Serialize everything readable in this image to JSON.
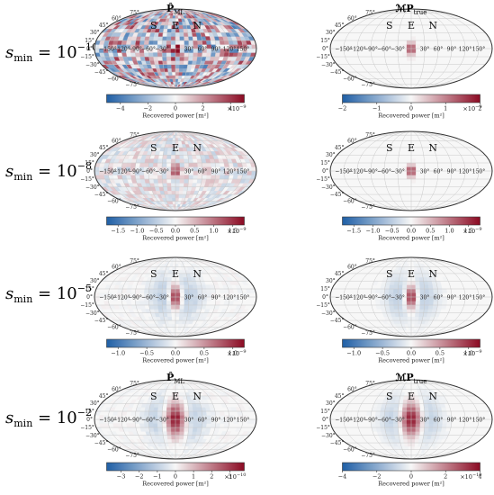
{
  "colors": {
    "neg": "#1f5fa6",
    "zero": "#f7f7f7",
    "pos": "#8b0a22",
    "grid": "#c8c8c8",
    "outline": "#333333"
  },
  "grid_labels": {
    "longitudes": [
      "−150°",
      "−120°",
      "−90°",
      "−60°",
      "−30°",
      "30°",
      "60°",
      "90°",
      "120°",
      "150°"
    ],
    "latitudes": [
      "75°",
      "60°",
      "45°",
      "30°",
      "15°",
      "0°",
      "−15°",
      "−30°",
      "−45°",
      "−60°",
      "−75°"
    ],
    "regions": [
      "S",
      "E",
      "N"
    ]
  },
  "rows": [
    {
      "label_base": "s",
      "label_sub": "min",
      "label_eq": " = 10",
      "label_exp": "−10",
      "panels": [
        {
          "title_base": "P̂",
          "title_sub": "ML",
          "colorbar_label": "Recovered power [m²]",
          "ticks": [
            "−4",
            "−2",
            "0",
            "2",
            "4"
          ],
          "tick_values": [
            -4,
            -2,
            0,
            2,
            4
          ],
          "range": [
            -5,
            5
          ],
          "multiplier": "×10",
          "multiplier_exp": "−9"
        },
        {
          "title_base": "ℳP",
          "title_sub": "true",
          "colorbar_label": "Recovered power [m²]",
          "ticks": [
            "−2",
            "−1",
            "0",
            "1",
            "2"
          ],
          "tick_values": [
            -2,
            -1,
            0,
            1,
            2
          ],
          "range": [
            -2,
            2
          ],
          "multiplier": "×10",
          "multiplier_exp": "−9"
        }
      ]
    },
    {
      "label_base": "s",
      "label_sub": "min",
      "label_eq": " = 10",
      "label_exp": "−8",
      "panels": [
        {
          "title_base": "",
          "title_sub": "",
          "colorbar_label": "Recovered power [m²]",
          "ticks": [
            "−1.5",
            "−1.0",
            "−0.5",
            "0.0",
            "0.5",
            "1.0",
            "1.5"
          ],
          "tick_values": [
            -1.5,
            -1.0,
            -0.5,
            0.0,
            0.5,
            1.0,
            1.5
          ],
          "range": [
            -1.8,
            1.8
          ],
          "multiplier": "×10",
          "multiplier_exp": "−9"
        },
        {
          "title_base": "",
          "title_sub": "",
          "colorbar_label": "Recovered power [m²]",
          "ticks": [
            "−1.5",
            "−1.0",
            "−0.5",
            "0.0",
            "0.5",
            "1.0",
            "1.5"
          ],
          "tick_values": [
            -1.5,
            -1.0,
            -0.5,
            0.0,
            0.5,
            1.0,
            1.5
          ],
          "range": [
            -1.8,
            1.8
          ],
          "multiplier": "×10",
          "multiplier_exp": "−9"
        }
      ]
    },
    {
      "label_base": "s",
      "label_sub": "min",
      "label_eq": " = 10",
      "label_exp": "−5",
      "panels": [
        {
          "title_base": "",
          "title_sub": "",
          "colorbar_label": "Recovered power [m²]",
          "ticks": [
            "−1.0",
            "−0.5",
            "0.0",
            "0.5",
            "1.0"
          ],
          "tick_values": [
            -1.0,
            -0.5,
            0.0,
            0.5,
            1.0
          ],
          "range": [
            -1.2,
            1.2
          ],
          "multiplier": "×10",
          "multiplier_exp": "−9"
        },
        {
          "title_base": "",
          "title_sub": "",
          "colorbar_label": "Recovered power [m²]",
          "ticks": [
            "−1.0",
            "−0.5",
            "0.0",
            "0.5",
            "1.0"
          ],
          "tick_values": [
            -1.0,
            -0.5,
            0.0,
            0.5,
            1.0
          ],
          "range": [
            -1.2,
            1.2
          ],
          "multiplier": "×10",
          "multiplier_exp": "−9"
        }
      ]
    },
    {
      "label_base": "s",
      "label_sub": "min",
      "label_eq": " = 10",
      "label_exp": "−2",
      "panels": [
        {
          "title_base": "P̂",
          "title_sub": "ML",
          "colorbar_label": "Recovered power [m²]",
          "ticks": [
            "−3",
            "−2",
            "−1",
            "0",
            "1",
            "2",
            "3"
          ],
          "tick_values": [
            -3,
            -2,
            -1,
            0,
            1,
            2,
            3
          ],
          "range": [
            -3.8,
            3.8
          ],
          "multiplier": "×10",
          "multiplier_exp": "−10"
        },
        {
          "title_base": "ℳP",
          "title_sub": "true",
          "colorbar_label": "Recovered power [m²]",
          "ticks": [
            "−4",
            "−2",
            "0",
            "2",
            "4"
          ],
          "tick_values": [
            -4,
            -2,
            0,
            2,
            4
          ],
          "range": [
            -4,
            4
          ],
          "multiplier": "×10",
          "multiplier_exp": "−10"
        }
      ]
    }
  ],
  "chart_data": [
    {
      "type": "heatmap",
      "projection": "mollweide",
      "row": "s_min = 10^-10",
      "panel": "P_ML",
      "colorbar_range": [
        -5,
        5
      ],
      "scale_exponent": -9,
      "feature": "noisy pixel pattern across sky, hotspot at lon 0°, lat 0°"
    },
    {
      "type": "heatmap",
      "projection": "mollweide",
      "row": "s_min = 10^-10",
      "panel": "M P_true",
      "colorbar_range": [
        -2,
        2
      ],
      "scale_exponent": -9,
      "feature": "compact hotspot at lon 0°, lat 0°"
    },
    {
      "type": "heatmap",
      "projection": "mollweide",
      "row": "s_min = 10^-8",
      "panel": "P_ML",
      "colorbar_range": [
        -1.8,
        1.8
      ],
      "scale_exponent": -9,
      "feature": "hotspot at lon 0°, lat 0° with weak surrounding noise"
    },
    {
      "type": "heatmap",
      "projection": "mollweide",
      "row": "s_min = 10^-8",
      "panel": "M P_true",
      "colorbar_range": [
        -1.8,
        1.8
      ],
      "scale_exponent": -9,
      "feature": "hotspot at lon 0°, lat 0°"
    },
    {
      "type": "heatmap",
      "projection": "mollweide",
      "row": "s_min = 10^-5",
      "panel": "P_ML",
      "colorbar_range": [
        -1.2,
        1.2
      ],
      "scale_exponent": -9,
      "feature": "elongated hotspot at lon 0°, lat 0°"
    },
    {
      "type": "heatmap",
      "projection": "mollweide",
      "row": "s_min = 10^-5",
      "panel": "M P_true",
      "colorbar_range": [
        -1.2,
        1.2
      ],
      "scale_exponent": -9,
      "feature": "elongated hotspot at lon 0°, lat 0°"
    },
    {
      "type": "heatmap",
      "projection": "mollweide",
      "row": "s_min = 10^-2",
      "panel": "P_ML",
      "colorbar_range": [
        -3.8,
        3.8
      ],
      "scale_exponent": -10,
      "feature": "broad hotspot at lon 0°, lat 0° with blue sidelobes"
    },
    {
      "type": "heatmap",
      "projection": "mollweide",
      "row": "s_min = 10^-2",
      "panel": "M P_true",
      "colorbar_range": [
        -4,
        4
      ],
      "scale_exponent": -10,
      "feature": "broad hotspot at lon 0°, lat 0° with blue sidelobes"
    }
  ]
}
